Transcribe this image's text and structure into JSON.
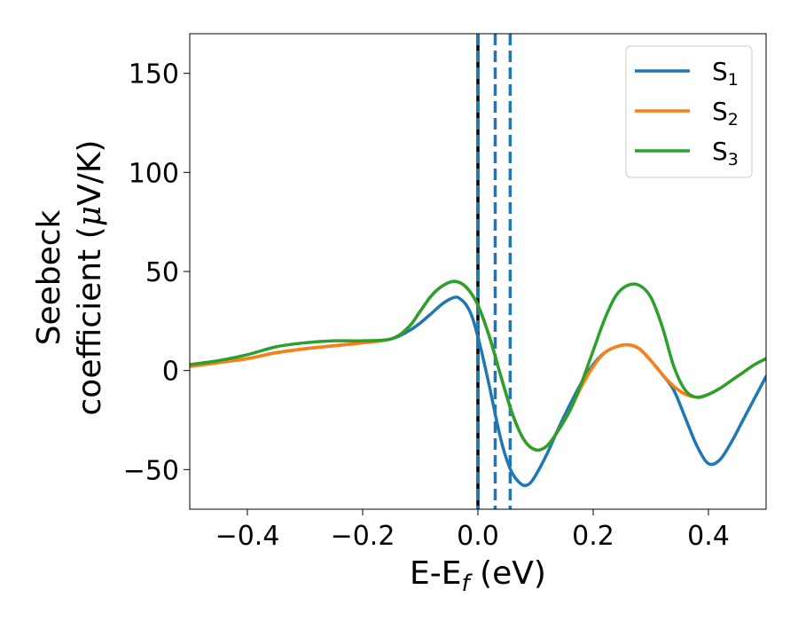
{
  "chart_data": {
    "type": "line",
    "title": "",
    "xlabel": {
      "main": "E-E",
      "sub": "f",
      "unit": " (eV)"
    },
    "ylabel": {
      "line1": "Seebeck",
      "line2": "coefficient  (",
      "mu": "μ",
      "unit": "V/K)"
    },
    "xlim": [
      -0.5,
      0.5
    ],
    "ylim": [
      -70,
      170
    ],
    "xticks": [
      {
        "value": -0.4,
        "label": "−0.4"
      },
      {
        "value": -0.2,
        "label": "−0.2"
      },
      {
        "value": 0.0,
        "label": "0.0"
      },
      {
        "value": 0.2,
        "label": "0.2"
      },
      {
        "value": 0.4,
        "label": "0.4"
      }
    ],
    "yticks": [
      {
        "value": -50,
        "label": "−50"
      },
      {
        "value": 0,
        "label": "0"
      },
      {
        "value": 50,
        "label": "50"
      },
      {
        "value": 100,
        "label": "100"
      },
      {
        "value": 150,
        "label": "150"
      }
    ],
    "grid": false,
    "legend_position": "top-right",
    "series": [
      {
        "name": "S",
        "sub": "1",
        "color": "#1f77b4",
        "x": [
          -0.5,
          -0.45,
          -0.4,
          -0.35,
          -0.3,
          -0.25,
          -0.2,
          -0.15,
          -0.12,
          -0.1,
          -0.08,
          -0.06,
          -0.04,
          -0.03,
          -0.02,
          -0.01,
          0.0,
          0.01,
          0.02,
          0.03,
          0.04,
          0.05,
          0.06,
          0.07,
          0.08,
          0.09,
          0.1,
          0.12,
          0.14,
          0.16,
          0.18,
          0.2,
          0.22,
          0.24,
          0.26,
          0.28,
          0.3,
          0.32,
          0.34,
          0.36,
          0.38,
          0.4,
          0.42,
          0.44,
          0.46,
          0.48,
          0.5
        ],
        "y": [
          2,
          4,
          6,
          9,
          11,
          12.5,
          14,
          16,
          20,
          24,
          29,
          34,
          37,
          36,
          33,
          27,
          17,
          5,
          -8,
          -22,
          -35,
          -45,
          -52,
          -56,
          -58,
          -57,
          -53,
          -42,
          -29,
          -17,
          -6,
          3,
          9,
          12,
          13,
          11,
          5,
          -2,
          -10,
          -24,
          -38,
          -47,
          -45,
          -36,
          -25,
          -14,
          -3
        ]
      },
      {
        "name": "S",
        "sub": "2",
        "color": "#ff7f0e",
        "x": [
          -0.5,
          -0.45,
          -0.4,
          -0.35,
          -0.3,
          -0.25,
          -0.2,
          -0.15,
          -0.12,
          -0.1,
          -0.08,
          -0.06,
          -0.04,
          -0.02,
          0.0,
          0.02,
          0.04,
          0.06,
          0.08,
          0.1,
          0.12,
          0.14,
          0.16,
          0.18,
          0.2,
          0.22,
          0.24,
          0.26,
          0.28,
          0.3,
          0.32,
          0.34,
          0.36,
          0.38,
          0.4,
          0.42,
          0.44,
          0.46,
          0.48,
          0.5
        ],
        "y": [
          2,
          4,
          6,
          9,
          11,
          12.5,
          14,
          16,
          22,
          30,
          38,
          43,
          45,
          42,
          33,
          17,
          -3,
          -22,
          -35,
          -40,
          -38,
          -30,
          -20,
          -8,
          2,
          9,
          12,
          13,
          11,
          5,
          -2,
          -8,
          -12,
          -13.5,
          -12,
          -9,
          -5,
          -1,
          3,
          6
        ]
      },
      {
        "name": "S",
        "sub": "3",
        "color": "#2ca02c",
        "x": [
          -0.5,
          -0.45,
          -0.4,
          -0.35,
          -0.3,
          -0.25,
          -0.2,
          -0.15,
          -0.12,
          -0.1,
          -0.08,
          -0.06,
          -0.04,
          -0.02,
          0.0,
          0.02,
          0.04,
          0.06,
          0.08,
          0.1,
          0.12,
          0.14,
          0.16,
          0.18,
          0.2,
          0.22,
          0.24,
          0.26,
          0.28,
          0.3,
          0.32,
          0.34,
          0.36,
          0.38,
          0.4,
          0.42,
          0.44,
          0.46,
          0.48,
          0.5
        ],
        "y": [
          3,
          5,
          8,
          12,
          14,
          15,
          15,
          16,
          22,
          30,
          38,
          43,
          45,
          42,
          33,
          17,
          -3,
          -22,
          -35,
          -40,
          -38,
          -30,
          -20,
          -6,
          10,
          26,
          38,
          43,
          43,
          37,
          22,
          2,
          -10,
          -13.5,
          -12,
          -9,
          -5,
          -1,
          3,
          6
        ]
      }
    ],
    "vlines": [
      {
        "x": 0.0,
        "style": "solid",
        "color": "#000000"
      },
      {
        "x": 0.0,
        "style": "dashed",
        "color": "#1f77b4"
      },
      {
        "x": 0.03,
        "style": "dashed",
        "color": "#1f77b4"
      },
      {
        "x": 0.056,
        "style": "dashed",
        "color": "#1f77b4"
      }
    ]
  }
}
